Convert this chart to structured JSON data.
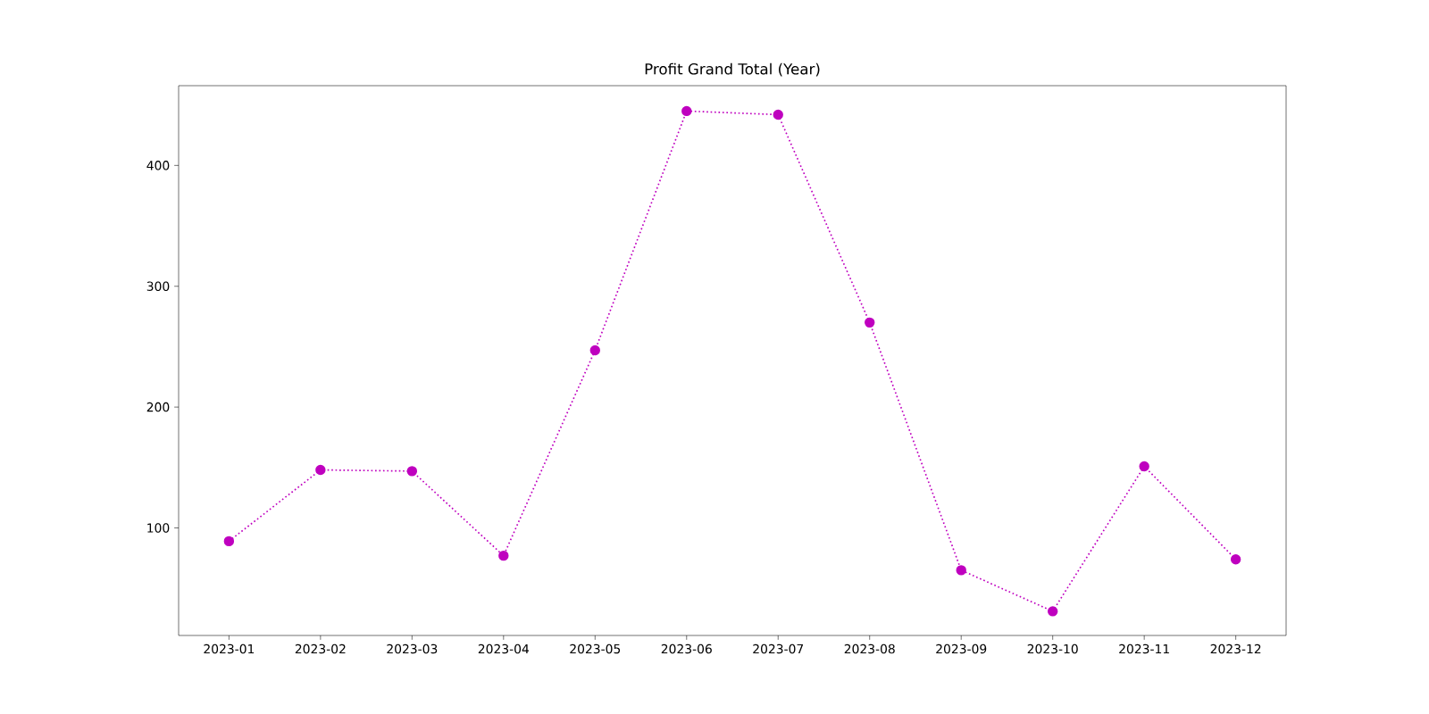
{
  "chart_data": {
    "type": "line",
    "title": "Profit Grand Total (Year)",
    "categories": [
      "2023-01",
      "2023-02",
      "2023-03",
      "2023-04",
      "2023-05",
      "2023-06",
      "2023-07",
      "2023-08",
      "2023-09",
      "2023-10",
      "2023-11",
      "2023-12"
    ],
    "values": [
      89,
      148,
      147,
      77,
      247,
      445,
      442,
      270,
      65,
      31,
      151,
      74
    ],
    "color": "#bf00bf",
    "ylim": [
      11,
      466
    ],
    "yticks": [
      100,
      200,
      300,
      400
    ],
    "marker": "circle",
    "line_style": "dotted"
  }
}
